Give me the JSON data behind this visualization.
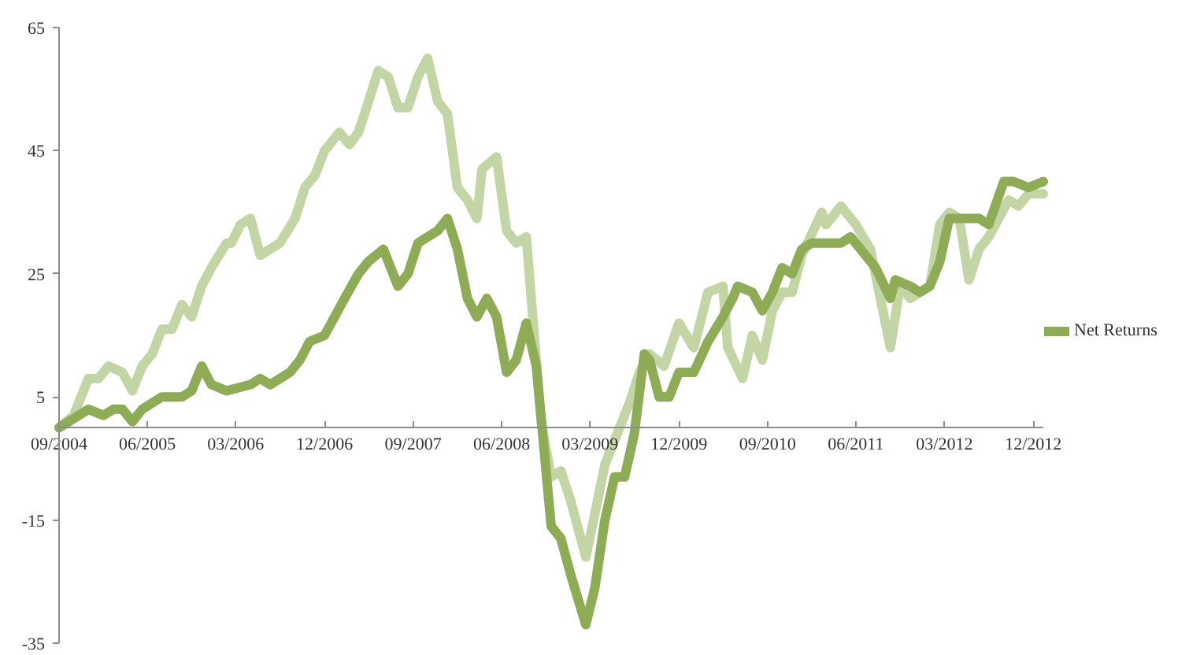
{
  "chart_data": {
    "type": "line",
    "xlim": [
      "2004-09-01",
      "2013-01-01"
    ],
    "ylim": [
      -35,
      65
    ],
    "yticks": [
      -35,
      -15,
      5,
      25,
      45,
      65
    ],
    "xticks": [
      {
        "value": "2004-09-01",
        "label": "09/2004"
      },
      {
        "value": "2005-06-01",
        "label": "06/2005"
      },
      {
        "value": "2006-03-01",
        "label": "03/2006"
      },
      {
        "value": "2006-12-01",
        "label": "12/2006"
      },
      {
        "value": "2007-09-01",
        "label": "09/2007"
      },
      {
        "value": "2008-06-01",
        "label": "06/2008"
      },
      {
        "value": "2009-03-01",
        "label": "03/2009"
      },
      {
        "value": "2009-12-01",
        "label": "12/2009"
      },
      {
        "value": "2010-09-01",
        "label": "09/2010"
      },
      {
        "value": "2011-06-01",
        "label": "06/2011"
      },
      {
        "value": "2012-03-01",
        "label": "03/2012"
      },
      {
        "value": "2012-12-01",
        "label": "12/2012"
      }
    ],
    "grid": false,
    "legend": "right",
    "marker": "none",
    "line_style": "solid",
    "series": [
      {
        "name": "Net Returns",
        "color": "#8eab56",
        "x": [
          "2004-09-01",
          "2004-12-01",
          "2005-01-16",
          "2005-02-16",
          "2005-03-16",
          "2005-04-16",
          "2005-05-16",
          "2005-07-16",
          "2005-09-16",
          "2005-10-16",
          "2005-11-16",
          "2005-12-16",
          "2006-02-01",
          "2006-04-16",
          "2006-05-16",
          "2006-06-16",
          "2006-08-16",
          "2006-09-16",
          "2006-10-16",
          "2006-12-01",
          "2007-02-01",
          "2007-03-16",
          "2007-04-16",
          "2007-06-01",
          "2007-07-16",
          "2007-08-16",
          "2007-09-16",
          "2007-10-16",
          "2007-11-16",
          "2007-12-16",
          "2008-01-16",
          "2008-02-16",
          "2008-03-16",
          "2008-04-16",
          "2008-05-16",
          "2008-06-16",
          "2008-07-16",
          "2008-08-16",
          "2008-09-16",
          "2008-11-01",
          "2008-12-01",
          "2009-01-01",
          "2009-02-16",
          "2009-03-16",
          "2009-04-16",
          "2009-05-16",
          "2009-06-16",
          "2009-07-16",
          "2009-08-16",
          "2009-09-01",
          "2009-10-01",
          "2009-11-01",
          "2009-12-01",
          "2010-01-16",
          "2010-03-01",
          "2010-04-16",
          "2010-05-16",
          "2010-06-01",
          "2010-07-16",
          "2010-08-16",
          "2010-09-16",
          "2010-10-16",
          "2010-11-16",
          "2010-12-16",
          "2011-01-16",
          "2011-03-01",
          "2011-03-16",
          "2011-04-16",
          "2011-05-16",
          "2011-07-01",
          "2011-08-01",
          "2011-09-16",
          "2011-10-01",
          "2011-11-16",
          "2011-12-16",
          "2012-01-16",
          "2012-02-16",
          "2012-03-16",
          "2012-05-01",
          "2012-06-16",
          "2012-07-16",
          "2012-09-01",
          "2012-10-01",
          "2012-11-16",
          "2013-01-01"
        ],
        "values": [
          0,
          3,
          2,
          3,
          3,
          1,
          3,
          5,
          5,
          6,
          10,
          7,
          6,
          7,
          8,
          7,
          9,
          11,
          14,
          15,
          21,
          25,
          27,
          29,
          23,
          25,
          30,
          31,
          32,
          34,
          29,
          21,
          18,
          21,
          18,
          9,
          11,
          17,
          10,
          -16,
          -18,
          -24,
          -32,
          -26,
          -15,
          -8,
          -8,
          -1,
          12,
          11,
          5,
          5,
          9,
          9,
          14,
          18,
          21,
          23,
          22,
          19,
          22,
          26,
          25,
          29,
          30,
          30,
          30,
          30,
          31,
          28,
          26,
          21,
          24,
          23,
          22,
          23,
          27,
          34,
          34,
          34,
          33,
          40,
          40,
          39,
          40
        ]
      },
      {
        "color": "#c3d5a4",
        "x": [
          "2004-09-01",
          "2004-10-16",
          "2004-12-01",
          "2005-01-01",
          "2005-02-01",
          "2005-03-16",
          "2005-04-16",
          "2005-05-16",
          "2005-06-16",
          "2005-07-16",
          "2005-08-16",
          "2005-09-16",
          "2005-10-16",
          "2005-11-16",
          "2005-12-16",
          "2006-02-01",
          "2006-02-16",
          "2006-03-16",
          "2006-04-16",
          "2006-05-16",
          "2006-07-16",
          "2006-09-01",
          "2006-10-01",
          "2006-11-01",
          "2006-12-01",
          "2007-01-16",
          "2007-02-16",
          "2007-03-16",
          "2007-04-16",
          "2007-05-16",
          "2007-06-16",
          "2007-07-16",
          "2007-08-16",
          "2007-09-16",
          "2007-10-16",
          "2007-11-16",
          "2007-12-16",
          "2008-01-16",
          "2008-02-16",
          "2008-03-16",
          "2008-04-01",
          "2008-05-16",
          "2008-06-16",
          "2008-07-16",
          "2008-08-16",
          "2008-10-01",
          "2008-11-01",
          "2008-12-01",
          "2009-01-01",
          "2009-02-16",
          "2009-03-16",
          "2009-04-16",
          "2009-05-16",
          "2009-07-01",
          "2009-08-01",
          "2009-09-01",
          "2009-10-16",
          "2009-12-01",
          "2010-01-16",
          "2010-03-01",
          "2010-04-16",
          "2010-05-01",
          "2010-06-16",
          "2010-07-16",
          "2010-08-16",
          "2010-09-16",
          "2010-10-16",
          "2010-11-16",
          "2010-12-16",
          "2011-02-16",
          "2011-03-01",
          "2011-04-16",
          "2011-06-01",
          "2011-07-16",
          "2011-09-16",
          "2011-10-16",
          "2011-11-16",
          "2012-01-16",
          "2012-02-16",
          "2012-03-16",
          "2012-04-16",
          "2012-05-16",
          "2012-06-16",
          "2012-07-16",
          "2012-09-16",
          "2012-10-16",
          "2012-11-16",
          "2013-01-01"
        ],
        "values": [
          0,
          2,
          8,
          8,
          10,
          9,
          6,
          10,
          12,
          16,
          16,
          20,
          18,
          23,
          26,
          30,
          30,
          33,
          34,
          28,
          30,
          34,
          39,
          41,
          45,
          48,
          46,
          48,
          53,
          58,
          57,
          52,
          52,
          57,
          60,
          53,
          51,
          39,
          37,
          34,
          42,
          44,
          32,
          30,
          31,
          1,
          -8,
          -7,
          -12,
          -21,
          -14,
          -6,
          -2,
          4,
          9,
          12,
          10,
          17,
          13,
          22,
          23,
          13,
          8,
          15,
          11,
          19,
          22,
          22,
          28,
          35,
          33,
          36,
          33,
          29,
          13,
          23,
          21,
          23,
          33,
          35,
          34,
          24,
          29,
          31,
          37,
          36,
          38,
          38
        ]
      }
    ]
  }
}
